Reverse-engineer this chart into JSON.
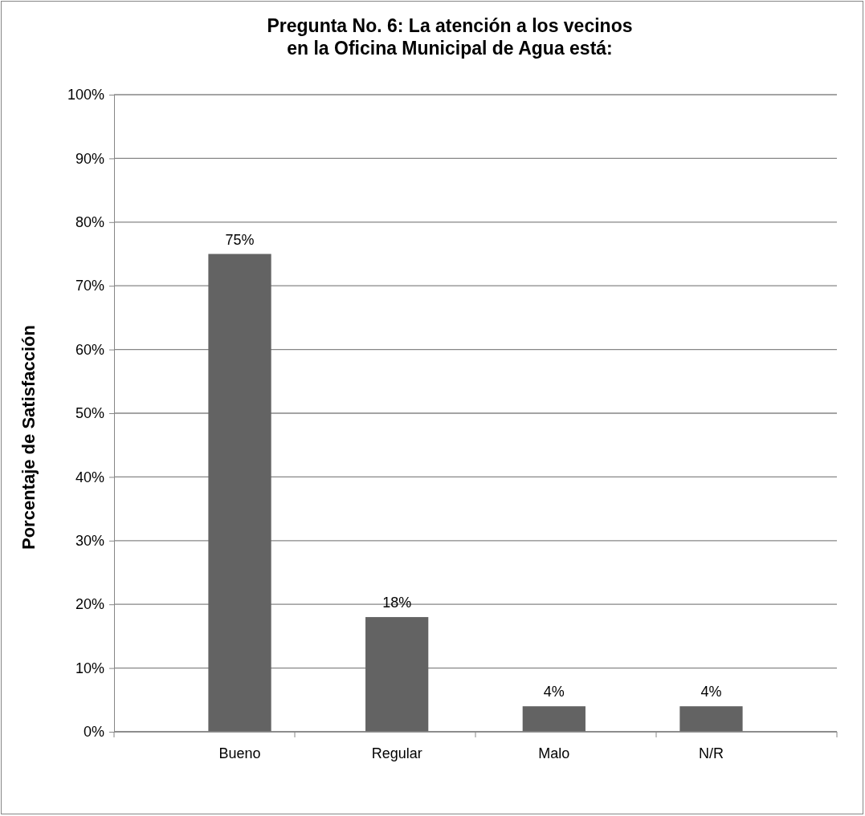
{
  "chart_data": {
    "type": "bar",
    "title": "Pregunta No. 6: La atención a los vecinos\nen la Oficina Municipal de Agua está:",
    "ylabel": "Porcentaje de Satisfacción",
    "categories": [
      "Bueno",
      "Regular",
      "Malo",
      "N/R"
    ],
    "values": [
      75,
      18,
      4,
      4
    ],
    "value_labels": [
      "75%",
      "18%",
      "4%",
      "4%"
    ],
    "color": "#636363",
    "grid": "y",
    "ylim": [
      0,
      100
    ],
    "yticks": [
      {
        "value": 0,
        "label": "0%"
      },
      {
        "value": 10,
        "label": "10%"
      },
      {
        "value": 20,
        "label": "20%"
      },
      {
        "value": 30,
        "label": "30%"
      },
      {
        "value": 40,
        "label": "40%"
      },
      {
        "value": 50,
        "label": "50%"
      },
      {
        "value": 60,
        "label": "60%"
      },
      {
        "value": 70,
        "label": "70%"
      },
      {
        "value": 80,
        "label": "80%"
      },
      {
        "value": 90,
        "label": "90%"
      },
      {
        "value": 100,
        "label": "100%"
      }
    ]
  }
}
